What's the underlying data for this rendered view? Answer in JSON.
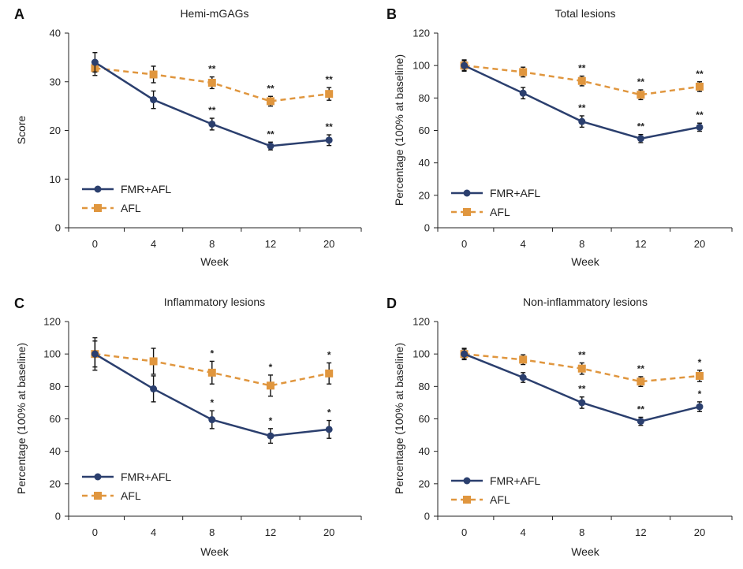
{
  "colors": {
    "fmr": "#2b3f6e",
    "afl": "#e0963e",
    "axis": "#222222"
  },
  "chart_data": [
    {
      "type": "line",
      "panel": "A",
      "title": "Hemi-mGAGs",
      "xlabel": "Week",
      "ylabel": "Score",
      "x": [
        0,
        4,
        8,
        12,
        20
      ],
      "x_tick_labels": [
        "0",
        "4",
        "8",
        "12",
        "20"
      ],
      "ylim": [
        0,
        40
      ],
      "y_ticks": [
        0,
        10,
        20,
        30,
        40
      ],
      "y_tick_labels": [
        "0",
        "10",
        "20",
        "30",
        "40"
      ],
      "legend": "lower-left",
      "series": [
        {
          "name": "FMR+AFL",
          "key": "fmr",
          "style": "solid",
          "marker": "circle",
          "values": [
            34,
            26.3,
            21.3,
            16.8,
            18
          ],
          "errors": [
            2,
            1.8,
            1.2,
            0.8,
            1.1
          ],
          "sig": [
            "",
            "",
            "**",
            "**",
            "**"
          ]
        },
        {
          "name": "AFL",
          "key": "afl",
          "style": "dashed",
          "marker": "square",
          "values": [
            32.8,
            31.5,
            29.8,
            26,
            27.5
          ],
          "errors": [
            1.5,
            1.7,
            1.2,
            1,
            1.3
          ],
          "sig": [
            "",
            "",
            "**",
            "**",
            "**"
          ]
        }
      ]
    },
    {
      "type": "line",
      "panel": "B",
      "title": "Total lesions",
      "xlabel": "Week",
      "ylabel": "Percentage (100% at baseline)",
      "x": [
        0,
        4,
        8,
        12,
        20
      ],
      "x_tick_labels": [
        "0",
        "4",
        "8",
        "12",
        "20"
      ],
      "ylim": [
        0,
        120
      ],
      "y_ticks": [
        0,
        20,
        40,
        60,
        80,
        100,
        120
      ],
      "y_tick_labels": [
        "0",
        "20",
        "40",
        "60",
        "80",
        "100",
        "120"
      ],
      "legend": "lower-left",
      "series": [
        {
          "name": "FMR+AFL",
          "key": "fmr",
          "style": "solid",
          "marker": "circle",
          "values": [
            100,
            83,
            65.5,
            55,
            62
          ],
          "errors": [
            3.5,
            3.5,
            3.5,
            2.5,
            2.5
          ],
          "sig": [
            "",
            "",
            "**",
            "**",
            "**"
          ]
        },
        {
          "name": "AFL",
          "key": "afl",
          "style": "dashed",
          "marker": "square",
          "values": [
            100,
            96,
            90.5,
            82,
            87
          ],
          "errors": [
            3,
            3,
            3,
            3,
            3
          ],
          "sig": [
            "",
            "",
            "**",
            "**",
            "**"
          ]
        }
      ]
    },
    {
      "type": "line",
      "panel": "C",
      "title": "Inflammatory lesions",
      "xlabel": "Week",
      "ylabel": "Percentage (100% at baseline)",
      "x": [
        0,
        4,
        8,
        12,
        20
      ],
      "x_tick_labels": [
        "0",
        "4",
        "8",
        "12",
        "20"
      ],
      "ylim": [
        0,
        120
      ],
      "y_ticks": [
        0,
        20,
        40,
        60,
        80,
        100,
        120
      ],
      "y_tick_labels": [
        "0",
        "20",
        "40",
        "60",
        "80",
        "100",
        "120"
      ],
      "legend": "lower-left",
      "series": [
        {
          "name": "FMR+AFL",
          "key": "fmr",
          "style": "solid",
          "marker": "circle",
          "values": [
            100,
            78.5,
            59.5,
            49.5,
            53.5
          ],
          "errors": [
            10,
            8,
            5.5,
            4.5,
            5.5
          ],
          "sig": [
            "",
            "",
            "*",
            "*",
            "*"
          ]
        },
        {
          "name": "AFL",
          "key": "afl",
          "style": "dashed",
          "marker": "square",
          "values": [
            100,
            95.5,
            88.5,
            80.5,
            88
          ],
          "errors": [
            8,
            8,
            7,
            6.5,
            6.5
          ],
          "sig": [
            "",
            "",
            "*",
            "*",
            "*"
          ]
        }
      ]
    },
    {
      "type": "line",
      "panel": "D",
      "title": "Non-inflammatory lesions",
      "xlabel": "Week",
      "ylabel": "Percentage (100% at baseline)",
      "x": [
        0,
        4,
        8,
        12,
        20
      ],
      "x_tick_labels": [
        "0",
        "4",
        "8",
        "12",
        "20"
      ],
      "ylim": [
        0,
        120
      ],
      "y_ticks": [
        0,
        20,
        40,
        60,
        80,
        100,
        120
      ],
      "y_tick_labels": [
        "0",
        "20",
        "40",
        "60",
        "80",
        "100",
        "120"
      ],
      "legend": "lower-left",
      "series": [
        {
          "name": "FMR+AFL",
          "key": "fmr",
          "style": "solid",
          "marker": "circle",
          "values": [
            100,
            85.5,
            70,
            58.5,
            67.5
          ],
          "errors": [
            3.5,
            3,
            3.5,
            2.5,
            3
          ],
          "sig": [
            "",
            "",
            "**",
            "**",
            "*"
          ]
        },
        {
          "name": "AFL",
          "key": "afl",
          "style": "dashed",
          "marker": "square",
          "values": [
            100,
            96.5,
            91,
            83,
            86.5
          ],
          "errors": [
            3,
            3,
            3.5,
            3,
            3.5
          ],
          "sig": [
            "",
            "",
            "**",
            "**",
            "*"
          ]
        }
      ]
    }
  ]
}
